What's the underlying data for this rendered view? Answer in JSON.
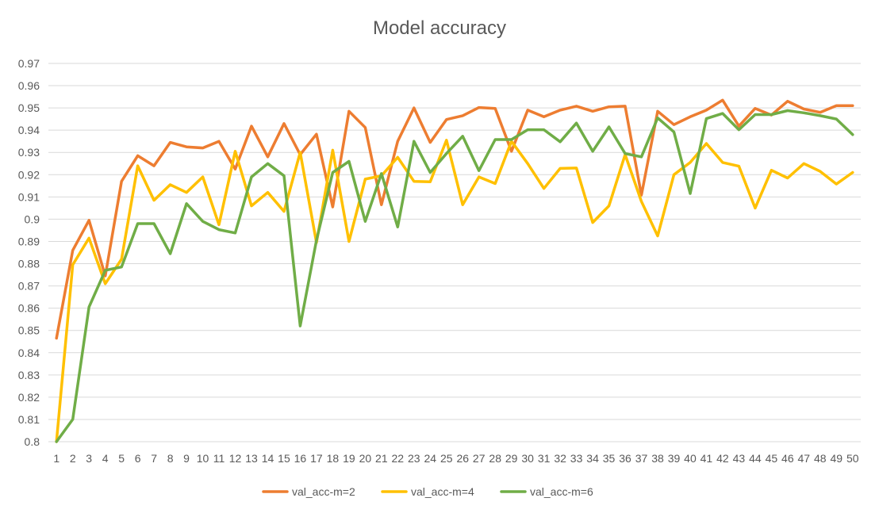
{
  "chart_data": {
    "type": "line",
    "title": "Model accuracy",
    "xlabel": "",
    "ylabel": "",
    "x": [
      1,
      2,
      3,
      4,
      5,
      6,
      7,
      8,
      9,
      10,
      11,
      12,
      13,
      14,
      15,
      16,
      17,
      18,
      19,
      20,
      21,
      22,
      23,
      24,
      25,
      26,
      27,
      28,
      29,
      30,
      31,
      32,
      33,
      34,
      35,
      36,
      37,
      38,
      39,
      40,
      41,
      42,
      43,
      44,
      45,
      46,
      47,
      48,
      49,
      50
    ],
    "ylim": [
      0.8,
      0.97
    ],
    "yticks": [
      0.8,
      0.81,
      0.82,
      0.83,
      0.84,
      0.85,
      0.86,
      0.87,
      0.88,
      0.89,
      0.9,
      0.91,
      0.92,
      0.93,
      0.94,
      0.95,
      0.96,
      0.97
    ],
    "grid": true,
    "legend_position": "bottom",
    "series": [
      {
        "name": "val_acc-m=2",
        "color": "#ED7D31",
        "values": [
          0.8465,
          0.886,
          0.8995,
          0.8745,
          0.917,
          0.9285,
          0.924,
          0.9345,
          0.9325,
          0.932,
          0.935,
          0.9225,
          0.9418,
          0.928,
          0.943,
          0.929,
          0.9382,
          0.9055,
          0.9485,
          0.9412,
          0.9065,
          0.935,
          0.95,
          0.9345,
          0.9448,
          0.9465,
          0.9502,
          0.9498,
          0.9305,
          0.949,
          0.946,
          0.949,
          0.9508,
          0.9485,
          0.9505,
          0.9508,
          0.9108,
          0.9485,
          0.9425,
          0.946,
          0.949,
          0.9535,
          0.9418,
          0.9498,
          0.9468,
          0.953,
          0.9495,
          0.948,
          0.951,
          0.951
        ]
      },
      {
        "name": "val_acc-m=4",
        "color": "#FFC000",
        "values": [
          0.8,
          0.8795,
          0.8915,
          0.871,
          0.882,
          0.924,
          0.9085,
          0.9155,
          0.912,
          0.919,
          0.8975,
          0.9305,
          0.906,
          0.912,
          0.9035,
          0.93,
          0.8895,
          0.931,
          0.89,
          0.918,
          0.9195,
          0.9278,
          0.917,
          0.9168,
          0.9355,
          0.9065,
          0.919,
          0.916,
          0.935,
          0.925,
          0.9138,
          0.9228,
          0.923,
          0.8985,
          0.906,
          0.929,
          0.908,
          0.8925,
          0.92,
          0.9255,
          0.934,
          0.9255,
          0.9238,
          0.905,
          0.922,
          0.9185,
          0.925,
          0.9215,
          0.9158,
          0.921
        ]
      },
      {
        "name": "val_acc-m=6",
        "color": "#70AD47",
        "values": [
          0.8,
          0.81,
          0.8605,
          0.877,
          0.8785,
          0.898,
          0.898,
          0.8845,
          0.907,
          0.899,
          0.8953,
          0.8938,
          0.919,
          0.925,
          0.9195,
          0.852,
          0.8905,
          0.921,
          0.926,
          0.899,
          0.9205,
          0.8965,
          0.935,
          0.921,
          0.9295,
          0.9373,
          0.9218,
          0.9358,
          0.9358,
          0.9402,
          0.9402,
          0.9348,
          0.9432,
          0.9305,
          0.9415,
          0.9295,
          0.928,
          0.9455,
          0.9392,
          0.9115,
          0.9452,
          0.9475,
          0.9402,
          0.947,
          0.947,
          0.9488,
          0.9478,
          0.9465,
          0.945,
          0.938
        ]
      }
    ]
  }
}
